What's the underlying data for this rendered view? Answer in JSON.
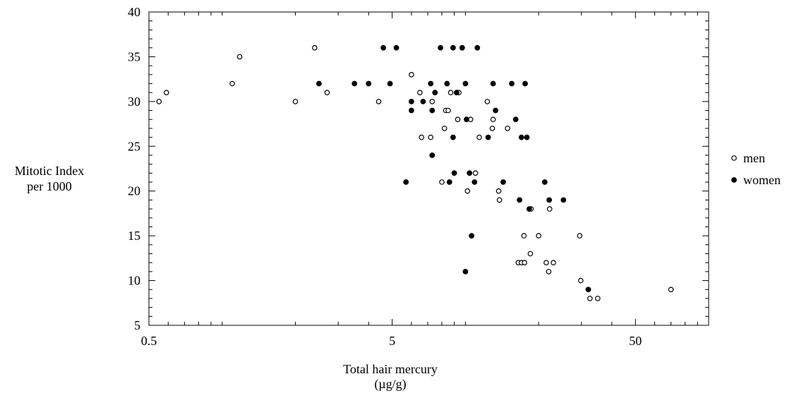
{
  "chart_data": {
    "type": "scatter",
    "title": "",
    "xlabel": "Total hair mercury",
    "xlabel_unit": "(µg/g)",
    "ylabel_line1": "Mitotic Index",
    "ylabel_line2": "per 1000",
    "xscale": "log",
    "xlim": [
      0.5,
      100
    ],
    "ylim": [
      5,
      40
    ],
    "x_tick_values": [
      0.5,
      5,
      50
    ],
    "x_tick_labels": [
      "0.5",
      "5",
      "50"
    ],
    "y_tick_values": [
      5,
      10,
      15,
      20,
      25,
      30,
      35,
      40
    ],
    "y_tick_labels": [
      "5",
      "10",
      "15",
      "20",
      "25",
      "30",
      "35",
      "40"
    ],
    "grid": false,
    "legend_position": "right",
    "series": [
      {
        "name": "men",
        "marker": "open-circle",
        "points": [
          [
            0.55,
            30
          ],
          [
            0.59,
            31
          ],
          [
            1.1,
            32
          ],
          [
            1.18,
            35
          ],
          [
            2.0,
            30
          ],
          [
            2.4,
            36
          ],
          [
            2.7,
            31
          ],
          [
            4.4,
            30
          ],
          [
            6.0,
            33
          ],
          [
            6.5,
            31
          ],
          [
            6.6,
            26
          ],
          [
            7.2,
            26
          ],
          [
            7.3,
            30
          ],
          [
            8.3,
            29
          ],
          [
            8.5,
            29
          ],
          [
            8.7,
            31
          ],
          [
            8.2,
            27
          ],
          [
            8.0,
            21
          ],
          [
            9.3,
            28
          ],
          [
            9.4,
            31
          ],
          [
            10.2,
            20
          ],
          [
            10.5,
            28
          ],
          [
            11.0,
            22
          ],
          [
            11.4,
            26
          ],
          [
            12.3,
            30
          ],
          [
            12.9,
            27
          ],
          [
            13.0,
            28
          ],
          [
            13.7,
            20
          ],
          [
            13.8,
            19
          ],
          [
            14.9,
            27
          ],
          [
            16.5,
            12
          ],
          [
            17.0,
            12
          ],
          [
            17.4,
            15
          ],
          [
            17.5,
            12
          ],
          [
            18.5,
            13
          ],
          [
            18.6,
            18
          ],
          [
            20.0,
            15
          ],
          [
            21.5,
            12
          ],
          [
            22.0,
            11
          ],
          [
            22.2,
            18
          ],
          [
            23.0,
            12
          ],
          [
            29.5,
            15
          ],
          [
            29.8,
            10
          ],
          [
            32.5,
            8
          ],
          [
            35.0,
            8
          ],
          [
            70.0,
            9
          ]
        ]
      },
      {
        "name": "women",
        "marker": "filled-circle",
        "points": [
          [
            2.5,
            32
          ],
          [
            3.5,
            32
          ],
          [
            4.0,
            32
          ],
          [
            4.6,
            36
          ],
          [
            4.9,
            32
          ],
          [
            5.2,
            36
          ],
          [
            5.7,
            21
          ],
          [
            6.0,
            29
          ],
          [
            6.0,
            30
          ],
          [
            6.7,
            30
          ],
          [
            7.2,
            32
          ],
          [
            7.3,
            29
          ],
          [
            7.5,
            31
          ],
          [
            7.3,
            24
          ],
          [
            7.9,
            36
          ],
          [
            8.4,
            32
          ],
          [
            8.9,
            26
          ],
          [
            8.9,
            36
          ],
          [
            9.0,
            22
          ],
          [
            9.2,
            31
          ],
          [
            8.6,
            21
          ],
          [
            9.7,
            36
          ],
          [
            10.0,
            32
          ],
          [
            10.1,
            28
          ],
          [
            10.0,
            11
          ],
          [
            10.4,
            22
          ],
          [
            10.9,
            21
          ],
          [
            10.6,
            15
          ],
          [
            11.2,
            36
          ],
          [
            12.4,
            26
          ],
          [
            13.0,
            32
          ],
          [
            13.3,
            29
          ],
          [
            14.3,
            21
          ],
          [
            15.5,
            32
          ],
          [
            16.1,
            28
          ],
          [
            16.7,
            19
          ],
          [
            17.0,
            26
          ],
          [
            17.6,
            32
          ],
          [
            17.9,
            26
          ],
          [
            18.3,
            18
          ],
          [
            21.2,
            21
          ],
          [
            22.1,
            19
          ],
          [
            25.3,
            19
          ],
          [
            32.0,
            9
          ]
        ]
      }
    ]
  }
}
